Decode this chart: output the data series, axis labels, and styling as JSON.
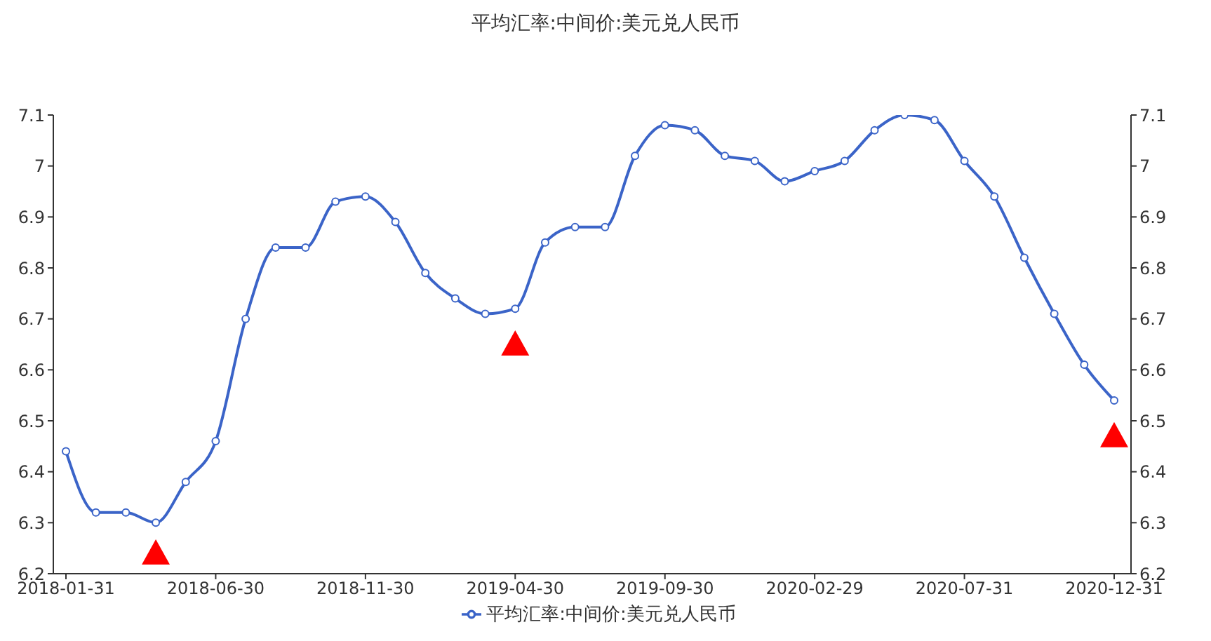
{
  "chart_data": {
    "type": "line",
    "title": "平均汇率:中间价:美元兑人民币",
    "categories": [
      "2018-01-31",
      null,
      null,
      null,
      null,
      "2018-06-30",
      null,
      null,
      null,
      null,
      "2018-11-30",
      null,
      null,
      null,
      null,
      "2019-04-30",
      null,
      null,
      null,
      null,
      "2019-09-30",
      null,
      null,
      null,
      null,
      "2020-02-29",
      null,
      null,
      null,
      null,
      "2020-07-31",
      null,
      null,
      null,
      null,
      "2020-12-31"
    ],
    "series": [
      {
        "name": "平均汇率:中间价:美元兑人民币",
        "type": "line",
        "color": "#3b64c8",
        "marker": "circle",
        "values": [
          6.44,
          6.32,
          6.32,
          6.3,
          6.38,
          6.46,
          6.7,
          6.84,
          6.84,
          6.93,
          6.94,
          6.89,
          6.79,
          6.74,
          6.71,
          6.72,
          6.85,
          6.88,
          6.88,
          7.02,
          7.08,
          7.07,
          7.02,
          7.01,
          6.97,
          6.99,
          7.01,
          7.07,
          7.1,
          7.09,
          7.01,
          6.94,
          6.82,
          6.71,
          6.61,
          6.54
        ]
      },
      {
        "type": "scatter",
        "color": "#ff0000",
        "marker": "triangle",
        "values": [
          null,
          null,
          null,
          6.24,
          null,
          null,
          null,
          null,
          null,
          null,
          null,
          null,
          null,
          null,
          null,
          6.65,
          null,
          null,
          null,
          null,
          null,
          null,
          null,
          null,
          null,
          null,
          null,
          null,
          null,
          null,
          null,
          null,
          null,
          null,
          null,
          6.47
        ]
      }
    ],
    "ylim": [
      6.2,
      7.1
    ],
    "yticks": [
      6.2,
      6.3,
      6.4,
      6.5,
      6.6,
      6.7,
      6.8,
      6.9,
      7,
      7.1
    ],
    "y2lim": [
      6.2,
      7.1
    ],
    "y2ticks": [
      6.2,
      6.3,
      6.4,
      6.5,
      6.6,
      6.7,
      6.8,
      6.9,
      7,
      7.1
    ],
    "legend": "bottom",
    "grid": false
  }
}
